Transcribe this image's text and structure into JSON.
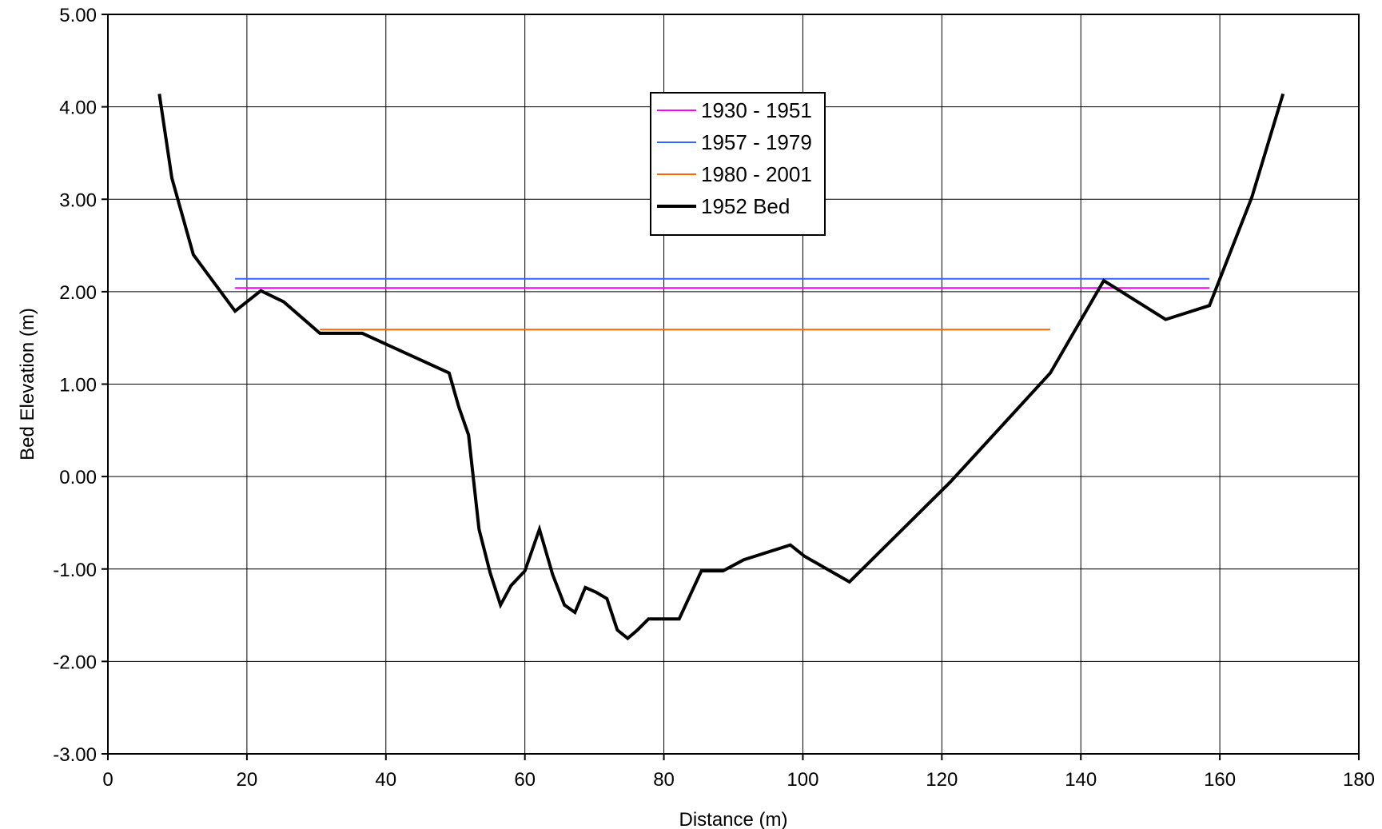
{
  "chart_data": {
    "type": "line",
    "title": "",
    "xlabel": "Distance (m)",
    "ylabel": "Bed Elevation (m)",
    "xlim": [
      0,
      180
    ],
    "ylim": [
      -3,
      5
    ],
    "xticks": [
      0,
      20,
      40,
      60,
      80,
      100,
      120,
      140,
      160,
      180
    ],
    "yticks": [
      -3,
      -2,
      -1,
      0,
      1,
      2,
      3,
      4,
      5
    ],
    "xtick_labels": [
      "0",
      "20",
      "40",
      "60",
      "80",
      "100",
      "120",
      "140",
      "160",
      "180"
    ],
    "ytick_labels": [
      "-3.00",
      "-2.00",
      "-1.00",
      "0.00",
      "1.00",
      "2.00",
      "3.00",
      "4.00",
      "5.00"
    ],
    "grid": true,
    "legend_position": "top-center",
    "series": [
      {
        "name": "1930 - 1951",
        "color": "#ff00ff",
        "width": 2,
        "x": [
          18.3,
          158.5
        ],
        "y": [
          2.04,
          2.04
        ]
      },
      {
        "name": "1957 - 1979",
        "color": "#3366ff",
        "width": 2,
        "x": [
          18.3,
          158.5
        ],
        "y": [
          2.14,
          2.14
        ]
      },
      {
        "name": "1980 - 2001",
        "color": "#ff6600",
        "width": 2,
        "x": [
          30.5,
          135.6
        ],
        "y": [
          1.59,
          1.59
        ]
      },
      {
        "name": "1952 Bed",
        "color": "#000000",
        "width": 4,
        "x": [
          7.4,
          9.2,
          12.3,
          18.3,
          22.0,
          25.3,
          30.5,
          36.6,
          49.1,
          50.5,
          51.9,
          53.4,
          55.0,
          56.5,
          58.0,
          60.0,
          62.1,
          64.0,
          65.7,
          67.2,
          68.7,
          70.2,
          71.8,
          73.3,
          74.8,
          76.2,
          77.8,
          82.2,
          85.4,
          88.5,
          91.5,
          98.2,
          100.2,
          106.7,
          121.2,
          135.6,
          143.3,
          152.2,
          158.5,
          164.6,
          169.1
        ],
        "y": [
          4.14,
          3.23,
          2.4,
          1.79,
          2.01,
          1.89,
          1.55,
          1.55,
          1.12,
          0.75,
          0.45,
          -0.57,
          -1.04,
          -1.39,
          -1.18,
          -1.02,
          -0.57,
          -1.06,
          -1.39,
          -1.47,
          -1.2,
          -1.25,
          -1.32,
          -1.66,
          -1.75,
          -1.66,
          -1.54,
          -1.54,
          -1.02,
          -1.02,
          -0.9,
          -0.74,
          -0.86,
          -1.14,
          -0.06,
          1.12,
          2.12,
          1.7,
          1.85,
          3.02,
          4.14
        ]
      }
    ]
  }
}
